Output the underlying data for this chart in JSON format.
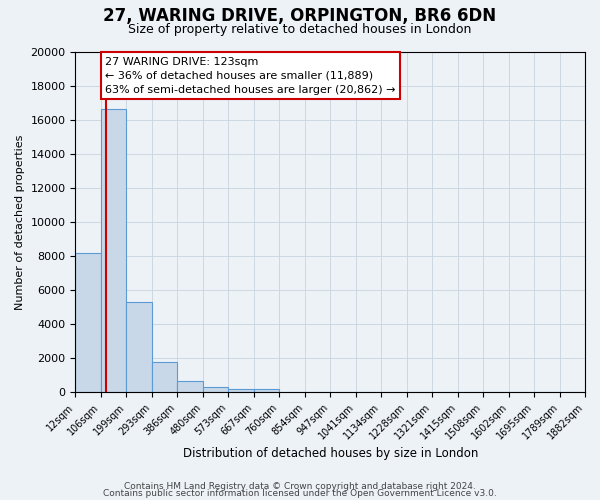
{
  "title": "27, WARING DRIVE, ORPINGTON, BR6 6DN",
  "subtitle": "Size of property relative to detached houses in London",
  "xlabel": "Distribution of detached houses by size in London",
  "ylabel": "Number of detached properties",
  "bin_edges": [
    12,
    106,
    199,
    293,
    386,
    480,
    573,
    667,
    760,
    854,
    947,
    1041,
    1134,
    1228,
    1321,
    1415,
    1508,
    1602,
    1695,
    1789,
    1882
  ],
  "bin_labels": [
    "12sqm",
    "106sqm",
    "199sqm",
    "293sqm",
    "386sqm",
    "480sqm",
    "573sqm",
    "667sqm",
    "760sqm",
    "854sqm",
    "947sqm",
    "1041sqm",
    "1134sqm",
    "1228sqm",
    "1321sqm",
    "1415sqm",
    "1508sqm",
    "1602sqm",
    "1695sqm",
    "1789sqm",
    "1882sqm"
  ],
  "counts": [
    8200,
    16600,
    5300,
    1800,
    700,
    300,
    200,
    200,
    0,
    0,
    0,
    0,
    0,
    0,
    0,
    0,
    0,
    0,
    0,
    0
  ],
  "bar_color": "#c8d8e8",
  "bar_edge_color": "#5b9bd5",
  "property_size": 123,
  "red_line_x": 123,
  "annotation_title": "27 WARING DRIVE: 123sqm",
  "annotation_line1": "← 36% of detached houses are smaller (11,889)",
  "annotation_line2": "63% of semi-detached houses are larger (20,862) →",
  "annotation_box_color": "#ffffff",
  "annotation_box_edge": "#cc0000",
  "red_line_color": "#cc0000",
  "ylim": [
    0,
    20000
  ],
  "yticks": [
    0,
    2000,
    4000,
    6000,
    8000,
    10000,
    12000,
    14000,
    16000,
    18000,
    20000
  ],
  "background_color": "#edf2f7",
  "grid_color": "#c8d4e0",
  "footer1": "Contains HM Land Registry data © Crown copyright and database right 2024.",
  "footer2": "Contains public sector information licensed under the Open Government Licence v3.0."
}
